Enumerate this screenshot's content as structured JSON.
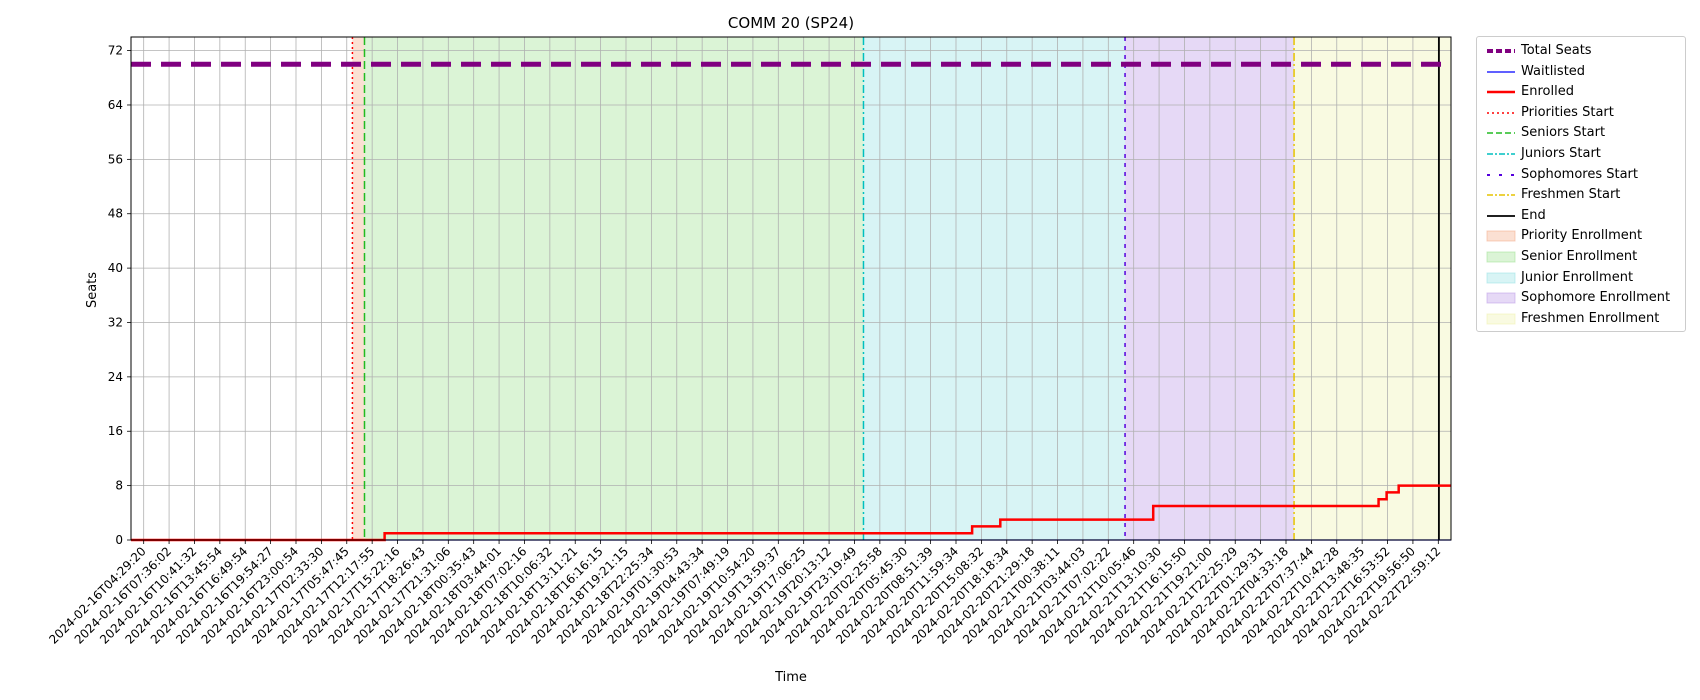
{
  "chart_data": {
    "type": "line",
    "title": "COMM 20 (SP24)",
    "xlabel": "Time",
    "ylabel": "Seats",
    "ylim": [
      0,
      74
    ],
    "yticks": [
      0,
      8,
      16,
      24,
      32,
      40,
      48,
      56,
      64,
      72
    ],
    "grid": true,
    "legend_position": "outside right, top",
    "x_range": [
      "2024-02-16T04:29:20",
      "2024-02-23T00:30:00"
    ],
    "xtick_labels": [
      "2024-02-16T04:29:20",
      "2024-02-16T07:36:02",
      "2024-02-16T10:41:32",
      "2024-02-16T13:45:54",
      "2024-02-16T16:49:54",
      "2024-02-16T19:54:27",
      "2024-02-16T23:00:54",
      "2024-02-17T02:33:30",
      "2024-02-17T05:47:45",
      "2024-02-17T12:17:55",
      "2024-02-17T15:22:16",
      "2024-02-17T18:26:43",
      "2024-02-17T21:31:06",
      "2024-02-18T00:35:43",
      "2024-02-18T03:44:01",
      "2024-02-18T07:02:16",
      "2024-02-18T10:06:32",
      "2024-02-18T13:11:21",
      "2024-02-18T16:16:15",
      "2024-02-18T19:21:15",
      "2024-02-18T22:25:34",
      "2024-02-19T01:30:53",
      "2024-02-19T04:43:34",
      "2024-02-19T07:49:19",
      "2024-02-19T10:54:20",
      "2024-02-19T13:59:37",
      "2024-02-19T17:06:25",
      "2024-02-19T20:13:12",
      "2024-02-19T23:19:49",
      "2024-02-20T02:25:58",
      "2024-02-20T05:45:30",
      "2024-02-20T08:51:39",
      "2024-02-20T11:59:34",
      "2024-02-20T15:08:32",
      "2024-02-20T18:18:34",
      "2024-02-20T21:29:18",
      "2024-02-21T00:38:11",
      "2024-02-21T03:44:03",
      "2024-02-21T07:02:22",
      "2024-02-21T10:05:46",
      "2024-02-21T13:10:30",
      "2024-02-21T16:15:50",
      "2024-02-21T19:21:00",
      "2024-02-21T22:25:29",
      "2024-02-22T01:29:31",
      "2024-02-22T04:33:18",
      "2024-02-22T07:37:44",
      "2024-02-22T10:42:28",
      "2024-02-22T13:48:35",
      "2024-02-22T16:53:52",
      "2024-02-22T19:56:50",
      "2024-02-22T22:59:12"
    ],
    "phases": [
      {
        "name": "Priority Enrollment",
        "start": "2024-02-17T08:00:00",
        "end": "2024-02-17T09:30:00",
        "color": "#f4a582"
      },
      {
        "name": "Senior Enrollment",
        "start": "2024-02-17T09:30:00",
        "end": "2024-02-19T23:30:00",
        "color": "#98e08a"
      },
      {
        "name": "Junior Enrollment",
        "start": "2024-02-19T23:30:00",
        "end": "2024-02-21T08:00:00",
        "color": "#8fe0e3"
      },
      {
        "name": "Sophomore Enrollment",
        "start": "2024-02-21T08:00:00",
        "end": "2024-02-22T05:00:00",
        "color": "#b893e6"
      },
      {
        "name": "Freshmen Enrollment",
        "start": "2024-02-22T05:00:00",
        "end": "2024-02-23T00:30:00",
        "color": "#eff0a8"
      }
    ],
    "vlines": [
      {
        "name": "Priorities Start",
        "x": "2024-02-17T08:00:00",
        "color": "#ff0000",
        "dash": "2,3"
      },
      {
        "name": "Seniors Start",
        "x": "2024-02-17T09:30:00",
        "color": "#22bb22",
        "dash": "8,4"
      },
      {
        "name": "Juniors Start",
        "x": "2024-02-19T23:30:00",
        "color": "#00bfbf",
        "dash": "8,3,2,3"
      },
      {
        "name": "Sophomores Start",
        "x": "2024-02-21T08:00:00",
        "color": "#5500dd",
        "dash": "4,5"
      },
      {
        "name": "Freshmen Start",
        "x": "2024-02-22T05:00:00",
        "color": "#e6c400",
        "dash": "8,3,2,3"
      },
      {
        "name": "End",
        "x": "2024-02-22T23:00:00",
        "color": "#000000",
        "dash": ""
      }
    ],
    "series": [
      {
        "name": "Total Seats",
        "color": "#800080",
        "style": "dashed-thick",
        "x": [
          "2024-02-16T04:29:20",
          "2024-02-23T00:30:00"
        ],
        "y": [
          70,
          70
        ]
      },
      {
        "name": "Waitlisted",
        "color": "#0000ff",
        "style": "solid-thin",
        "x": [
          "2024-02-16T04:29:20",
          "2024-02-23T00:30:00"
        ],
        "y": [
          0,
          0
        ]
      },
      {
        "name": "Enrolled",
        "color": "#ff0000",
        "style": "step",
        "x": [
          "2024-02-16T04:29:20",
          "2024-02-17T12:00:00",
          "2024-02-20T13:00:00",
          "2024-02-20T16:30:00",
          "2024-02-21T11:30:00",
          "2024-02-22T15:30:00",
          "2024-02-22T16:30:00",
          "2024-02-22T18:00:00",
          "2024-02-23T00:30:00"
        ],
        "y": [
          0,
          1,
          2,
          3,
          5,
          6,
          7,
          8,
          8
        ]
      }
    ]
  },
  "legend": [
    {
      "label": "Total Seats",
      "kind": "line",
      "color": "#800080",
      "dash": "6,3",
      "width": 4
    },
    {
      "label": "Waitlisted",
      "kind": "line",
      "color": "#0000ff",
      "dash": "",
      "width": 1.2
    },
    {
      "label": "Enrolled",
      "kind": "line",
      "color": "#ff0000",
      "dash": "",
      "width": 2.5
    },
    {
      "label": "Priorities Start",
      "kind": "line",
      "color": "#ff0000",
      "dash": "2,3",
      "width": 1.5
    },
    {
      "label": "Seniors Start",
      "kind": "line",
      "color": "#22bb22",
      "dash": "6,3",
      "width": 1.5
    },
    {
      "label": "Juniors Start",
      "kind": "line",
      "color": "#00bfbf",
      "dash": "6,2,2,2",
      "width": 1.5
    },
    {
      "label": "Sophomores Start",
      "kind": "line",
      "color": "#5500dd",
      "dash": "3,9",
      "width": 2
    },
    {
      "label": "Freshmen Start",
      "kind": "line",
      "color": "#e6c400",
      "dash": "6,2,2,2",
      "width": 1.5
    },
    {
      "label": "End",
      "kind": "line",
      "color": "#000000",
      "dash": "",
      "width": 1.8
    },
    {
      "label": "Priority Enrollment",
      "kind": "patch",
      "color": "#f4a582"
    },
    {
      "label": "Senior Enrollment",
      "kind": "patch",
      "color": "#98e08a"
    },
    {
      "label": "Junior Enrollment",
      "kind": "patch",
      "color": "#8fe0e3"
    },
    {
      "label": "Sophomore Enrollment",
      "kind": "patch",
      "color": "#b893e6"
    },
    {
      "label": "Freshmen Enrollment",
      "kind": "patch",
      "color": "#eff0a8"
    }
  ]
}
